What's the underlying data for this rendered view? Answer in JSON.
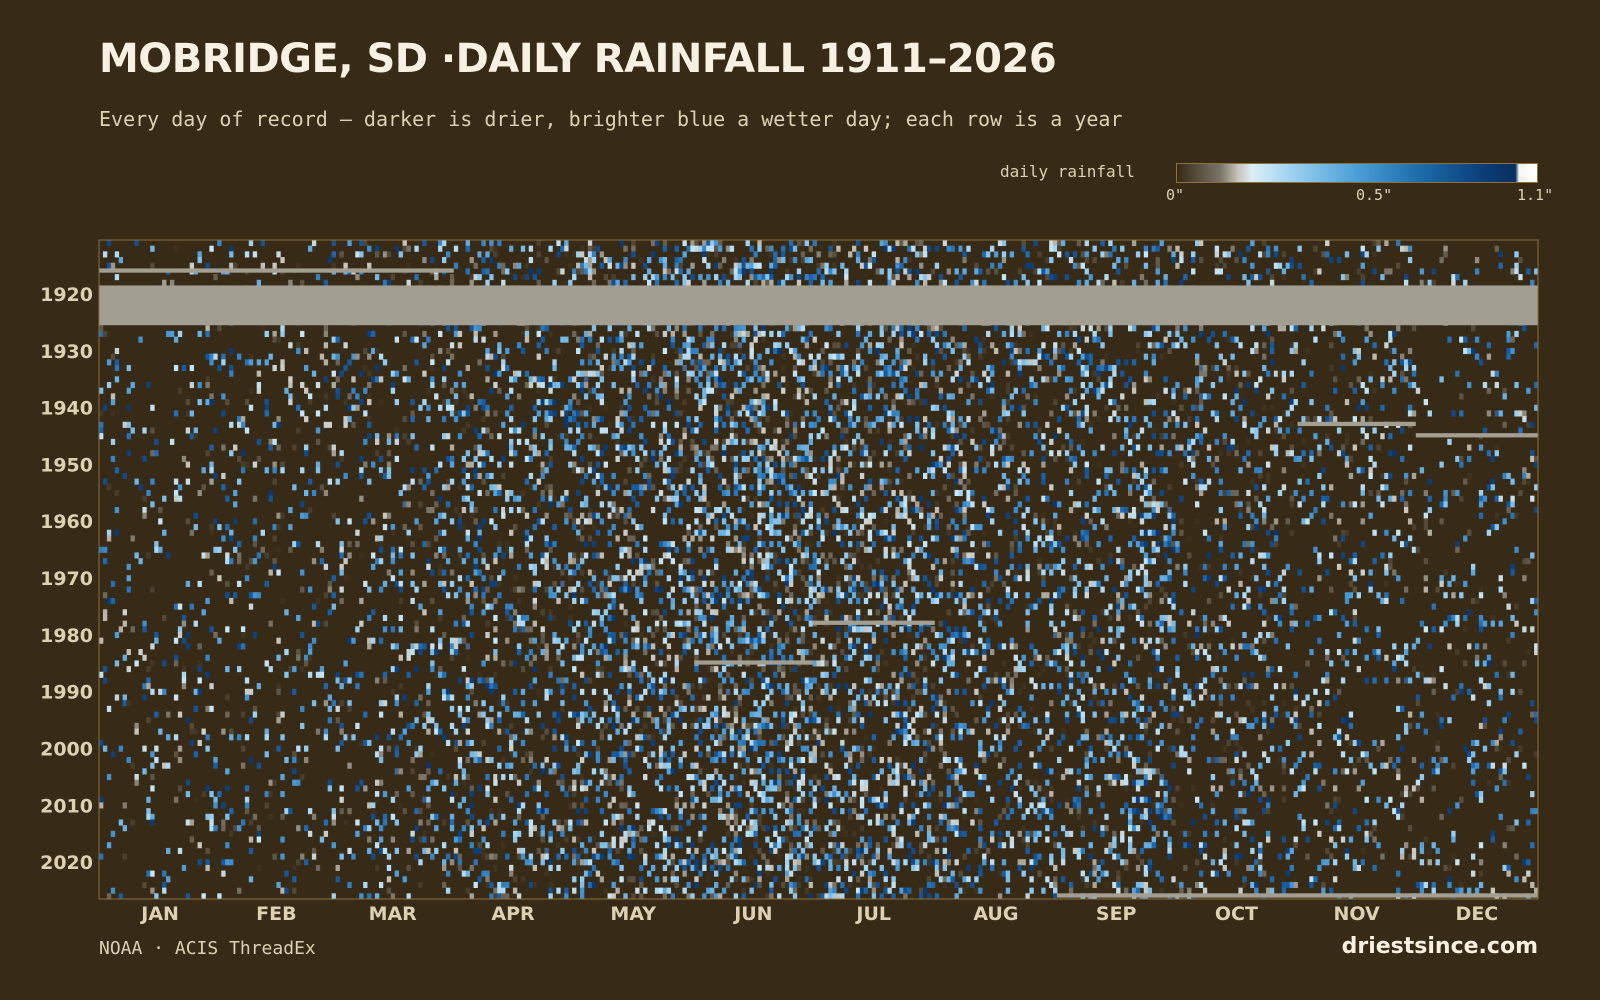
{
  "header": {
    "title": "MOBRIDGE, SD ·DAILY RAINFALL 1911–2026",
    "subtitle": "Every day of record — darker is drier, brighter blue a wetter day; each row is a year"
  },
  "legend": {
    "label": "daily rainfall",
    "tick_min": "0\"",
    "tick_mid": "0.5\"",
    "tick_max": "1.1\""
  },
  "footer": {
    "source": "NOAA · ACIS ThreadEx",
    "brand": "driestsince.com"
  },
  "colors": {
    "background": "#372a16",
    "missing": "#a39e92",
    "dry": "#372a16",
    "wet": "#0a2e5e",
    "extreme": "#ffffff",
    "axis_text": "#ddd0b3"
  },
  "chart_data": {
    "type": "heatmap",
    "x_axis": "day of year",
    "y_axis": "year",
    "year_range": [
      1911,
      2026
    ],
    "value_unit": "inches",
    "color_range": [
      0,
      1.1
    ],
    "month_labels": [
      "JAN",
      "FEB",
      "MAR",
      "APR",
      "MAY",
      "JUN",
      "JUL",
      "AUG",
      "SEP",
      "OCT",
      "NOV",
      "DEC"
    ],
    "year_ticks": [
      1920,
      1930,
      1940,
      1950,
      1960,
      1970,
      1980,
      1990,
      2000,
      2010,
      2020
    ],
    "missing_periods": [
      {
        "years": [
          1919,
          1925
        ],
        "months": "JAN–DEC",
        "note": "record gap"
      },
      {
        "year": 1916,
        "months": "JAN–MAR"
      },
      {
        "year": 1943,
        "months": "NOV"
      },
      {
        "year": 1945,
        "months": "DEC"
      },
      {
        "year": 1978,
        "months": "JUL"
      },
      {
        "year": 1985,
        "months": "JUN"
      },
      {
        "year": 2026,
        "months": "SEP–DEC"
      }
    ],
    "wettest_months": [
      "MAY",
      "JUN",
      "JUL"
    ],
    "driest_months": [
      "JAN",
      "FEB",
      "DEC"
    ]
  }
}
